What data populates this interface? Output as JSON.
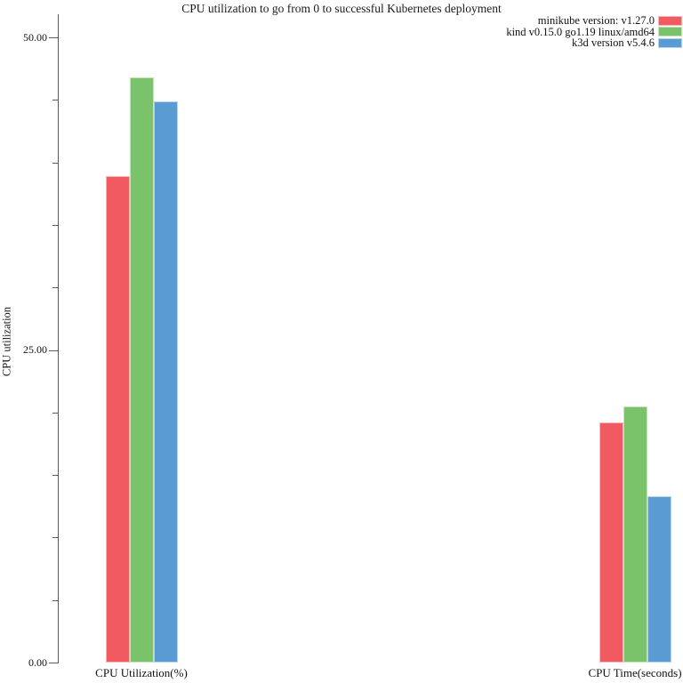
{
  "chart_data": {
    "type": "bar",
    "title": "CPU utilization to go from 0 to successful Kubernetes deployment",
    "ylabel": "CPU utilization",
    "xlabel": "",
    "categories": [
      "CPU Utilization(%)",
      "CPU Time(seconds)"
    ],
    "series": [
      {
        "name": "minikube version: v1.27.0",
        "color": "#F15A60",
        "values": [
          38.9,
          19.2
        ]
      },
      {
        "name": "kind v0.15.0 go1.19 linux/amd64",
        "color": "#7AC36A",
        "values": [
          46.8,
          20.5
        ]
      },
      {
        "name": "k3d version v5.4.6",
        "color": "#5A9BD4",
        "values": [
          44.9,
          13.3
        ]
      }
    ],
    "ylim": [
      0,
      51.85
    ],
    "yticks_major": {
      "values": [
        0,
        25,
        50
      ],
      "labels": [
        "0.00",
        "25.00",
        "50.00"
      ]
    },
    "yticks_minor": [
      5,
      10,
      15,
      20,
      30,
      35,
      40,
      45
    ],
    "legend_position": "top-right",
    "grid": false,
    "axis_color": "#5a5a5a",
    "text_color": "#111111",
    "background_color": "#ffffff"
  }
}
